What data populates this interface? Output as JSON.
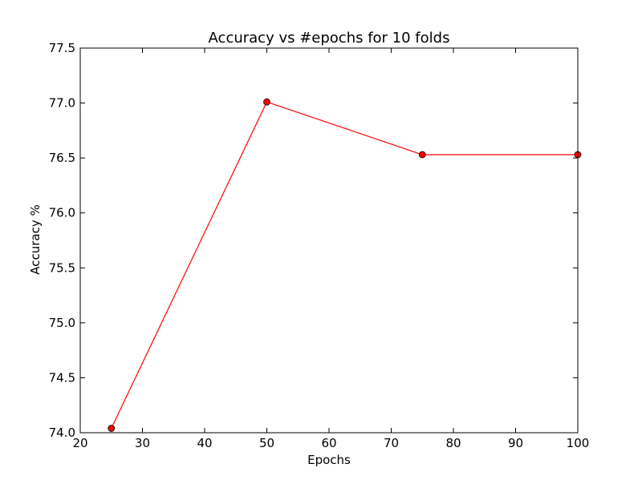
{
  "chart_data": {
    "type": "line",
    "title": "Accuracy vs #epochs for 10 folds",
    "xlabel": "Epochs",
    "ylabel": "Accuracy %",
    "xlim": [
      20,
      100
    ],
    "ylim": [
      74.0,
      77.5
    ],
    "xticks": [
      20,
      30,
      40,
      50,
      60,
      70,
      80,
      90,
      100
    ],
    "xtick_labels": [
      "20",
      "30",
      "40",
      "50",
      "60",
      "70",
      "80",
      "90",
      "100"
    ],
    "yticks": [
      74.0,
      74.5,
      75.0,
      75.5,
      76.0,
      76.5,
      77.0,
      77.5
    ],
    "ytick_labels": [
      "74.0",
      "74.5",
      "75.0",
      "75.5",
      "76.0",
      "76.5",
      "77.0",
      "77.5"
    ],
    "grid": false,
    "series": [
      {
        "x": [
          25,
          50,
          75,
          100
        ],
        "y": [
          74.04,
          77.01,
          76.53,
          76.53
        ],
        "color": "#ff0000",
        "marker": "circle",
        "marker_color": "#ff0000",
        "marker_edge_color": "#000000"
      }
    ]
  }
}
